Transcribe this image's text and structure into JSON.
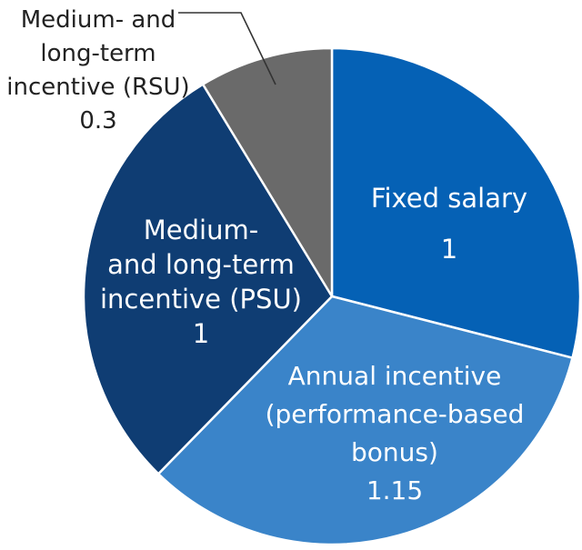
{
  "chart_data": {
    "type": "pie",
    "start_angle_deg": 0,
    "direction": "clockwise",
    "slices": [
      {
        "label_lines": [
          "Fixed salary"
        ],
        "value_text": "1",
        "value": 1,
        "color": "#0561b5"
      },
      {
        "label_lines": [
          "Annual incentive",
          "(performance-based",
          "bonus)"
        ],
        "value_text": "1.15",
        "value": 1.15,
        "color": "#3a84c9"
      },
      {
        "label_lines": [
          "Medium-",
          "and long-term",
          "incentive (PSU)"
        ],
        "value_text": "1",
        "value": 1,
        "color": "#0f3d73"
      },
      {
        "label_lines": [
          "Medium- and",
          "long-term",
          "incentive (RSU)"
        ],
        "value_text": "0.3",
        "value": 0.3,
        "color": "#6a6a6a"
      }
    ],
    "label_color_inside": "#ffffff",
    "label_color_outside": "#222222",
    "slice_border_color": "#ffffff",
    "leader_line_color": "#333333"
  }
}
